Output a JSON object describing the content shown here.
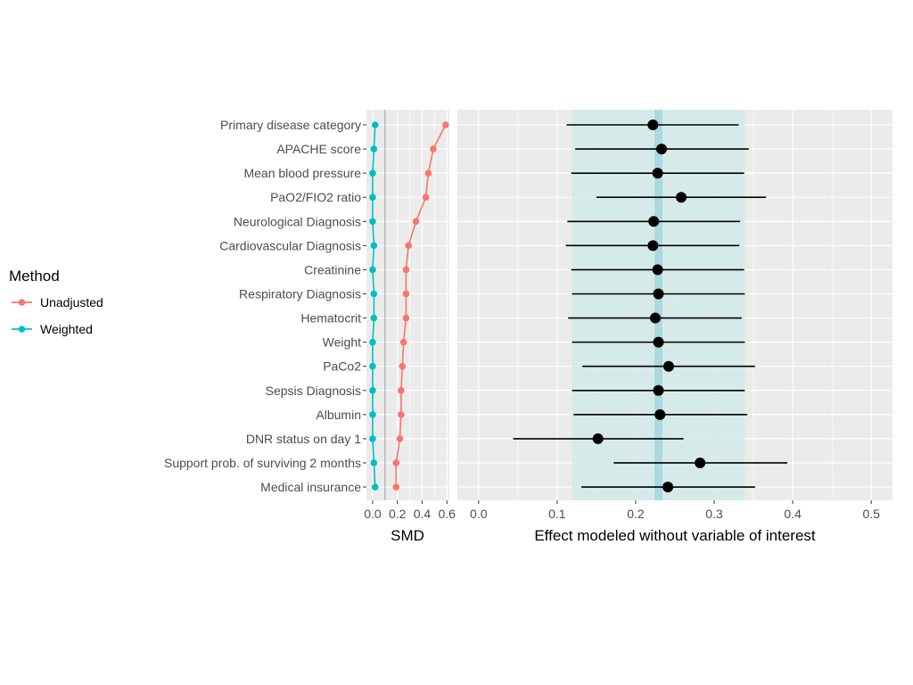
{
  "chart_data": [
    {
      "type": "line",
      "name": "smd-panel",
      "xlabel": "SMD",
      "xlim": [
        -0.05,
        0.62
      ],
      "xticks": [
        0.0,
        0.2,
        0.4,
        0.6
      ],
      "xtick_labels": [
        "0.0",
        "0.2",
        "0.4",
        "0.6"
      ],
      "reference_line": 0.1,
      "categories": [
        "Primary disease category",
        "APACHE score",
        "Mean blood pressure",
        "PaO2/FIO2 ratio",
        "Neurological Diagnosis",
        "Cardiovascular Diagnosis",
        "Creatinine",
        "Respiratory Diagnosis",
        "Hematocrit",
        "Weight",
        "PaCo2",
        "Sepsis Diagnosis",
        "Albumin",
        "DNR status on day 1",
        "Support prob. of surviving 2 months",
        "Medical insurance"
      ],
      "series": [
        {
          "name": "Unadjusted",
          "color": "#F8766D",
          "values": [
            0.59,
            0.49,
            0.45,
            0.43,
            0.35,
            0.29,
            0.27,
            0.27,
            0.27,
            0.25,
            0.24,
            0.23,
            0.23,
            0.22,
            0.19,
            0.19
          ]
        },
        {
          "name": "Weighted",
          "color": "#00BFC4",
          "values": [
            0.02,
            0.01,
            0.0,
            0.0,
            0.0,
            0.01,
            0.0,
            0.01,
            0.01,
            0.0,
            0.0,
            0.0,
            0.0,
            0.0,
            0.01,
            0.02
          ]
        }
      ]
    },
    {
      "type": "scatter",
      "name": "effect-panel",
      "xlabel": "Effect modeled without variable of interest",
      "xlim": [
        -0.027,
        0.527
      ],
      "xticks": [
        0.0,
        0.1,
        0.2,
        0.3,
        0.4,
        0.5
      ],
      "xtick_labels": [
        "0.0",
        "0.1",
        "0.2",
        "0.3",
        "0.4",
        "0.5"
      ],
      "reference_effect": 0.229,
      "reference_band_inner": [
        0.224,
        0.234
      ],
      "reference_band_outer": [
        0.119,
        0.339
      ],
      "estimates": [
        0.222,
        0.233,
        0.228,
        0.258,
        0.223,
        0.222,
        0.228,
        0.229,
        0.225,
        0.229,
        0.242,
        0.229,
        0.231,
        0.152,
        0.282,
        0.241
      ],
      "lower": [
        0.112,
        0.123,
        0.118,
        0.15,
        0.113,
        0.111,
        0.118,
        0.119,
        0.114,
        0.119,
        0.132,
        0.119,
        0.121,
        0.044,
        0.172,
        0.131
      ],
      "upper": [
        0.331,
        0.344,
        0.338,
        0.366,
        0.333,
        0.332,
        0.338,
        0.339,
        0.335,
        0.339,
        0.352,
        0.339,
        0.342,
        0.261,
        0.393,
        0.352
      ]
    }
  ],
  "legend": {
    "title": "Method",
    "items": [
      {
        "label": "Unadjusted",
        "color": "#F8766D"
      },
      {
        "label": "Weighted",
        "color": "#00BFC4"
      }
    ]
  },
  "colors": {
    "panel_bg": "#EBEBEB",
    "grid": "#FFFFFF",
    "band_outer": "#D4EAEA",
    "band_inner": "#A8D8E2",
    "point": "#000000"
  }
}
